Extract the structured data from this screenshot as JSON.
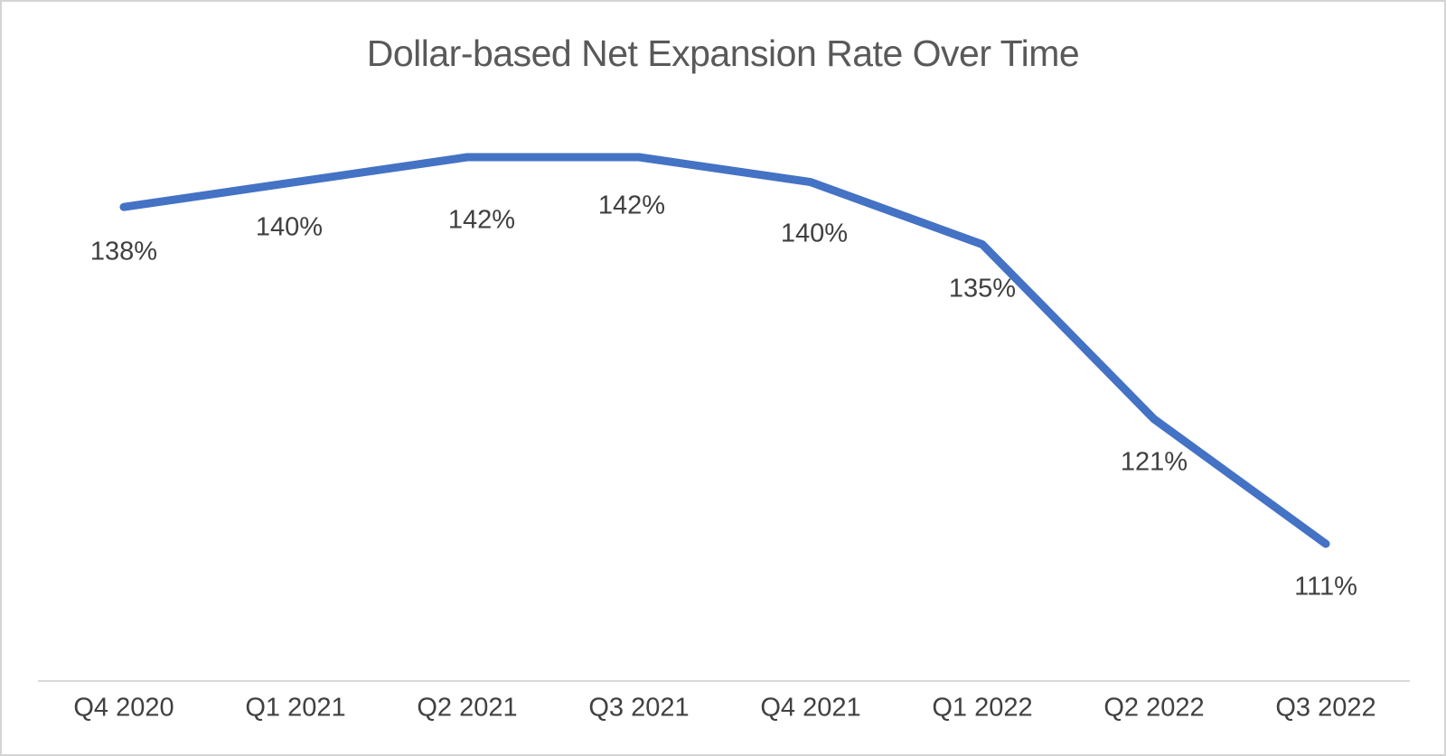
{
  "chart_data": {
    "type": "line",
    "title": "Dollar-based Net Expansion Rate Over Time",
    "categories": [
      "Q4 2020",
      "Q1 2021",
      "Q2 2021",
      "Q3 2021",
      "Q4 2021",
      "Q1 2022",
      "Q2 2022",
      "Q3 2022"
    ],
    "values": [
      138,
      140,
      142,
      142,
      140,
      135,
      121,
      111
    ],
    "labels": [
      "138%",
      "140%",
      "142%",
      "142%",
      "140%",
      "135%",
      "121%",
      "111%"
    ],
    "unit": "%",
    "series_name": "Dollar-based Net Expansion Rate",
    "xlabel": "",
    "ylabel": "",
    "ylim": [
      100,
      145
    ],
    "grid": false,
    "legend": false,
    "y_axis_visible": false,
    "data_label_position": "below",
    "line_color": "#4472C4",
    "axis_line_color": "#D9D9D9",
    "title_color": "#595959",
    "label_color": "#404040"
  }
}
